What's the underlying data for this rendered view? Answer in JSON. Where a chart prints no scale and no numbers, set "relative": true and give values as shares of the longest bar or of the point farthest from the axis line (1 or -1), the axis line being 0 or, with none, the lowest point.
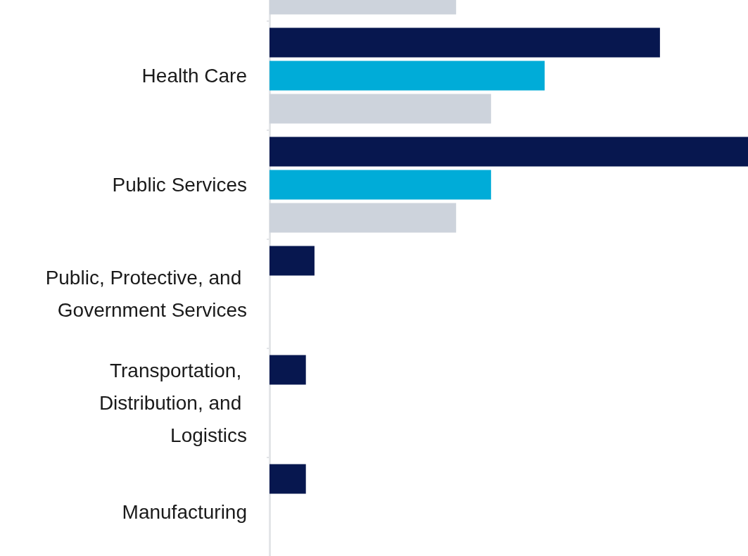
{
  "chart_data": {
    "type": "bar",
    "orientation": "horizontal",
    "relative": true,
    "categories": [
      null,
      "Health Care",
      "Public Services",
      "Public, Protective, and Government Services",
      "Transportation, Distribution, and Logistics",
      "Manufacturing"
    ],
    "series": [
      {
        "color": "#07174f",
        "values": [
          null,
          0.816,
          1,
          0.094,
          0.076,
          0.076
        ]
      },
      {
        "color": "#00acd8",
        "values": [
          null,
          0.575,
          0.463,
          null,
          null,
          null
        ]
      },
      {
        "color": "#cdd3dc",
        "values": [
          0.39,
          0.463,
          0.39,
          null,
          null,
          null
        ]
      }
    ],
    "grid": false
  }
}
